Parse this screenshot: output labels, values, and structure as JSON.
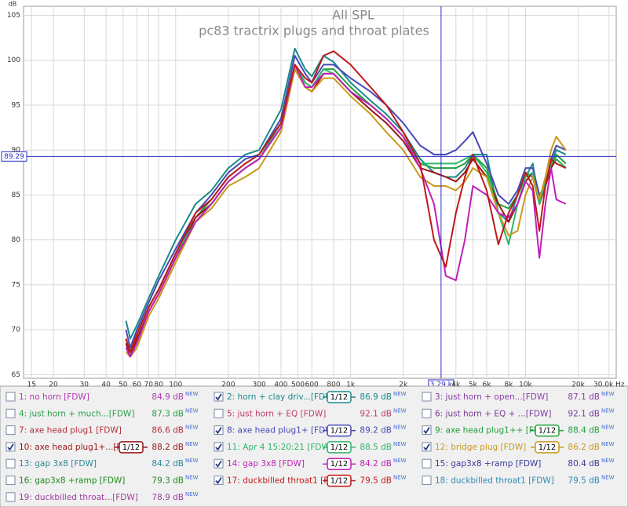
{
  "chart_data": {
    "type": "line",
    "title": "All SPL",
    "subtitle": "pc83 tractrix plugs and throat plates",
    "y_label": "dB",
    "log_x": true,
    "grid": true,
    "xlim": [
      13.5,
      33000
    ],
    "ylim": [
      64.6,
      106
    ],
    "xticks": [
      15,
      20,
      30,
      40,
      50,
      60,
      70,
      80,
      100,
      200,
      300,
      400,
      500,
      600,
      800,
      {
        "value": 1000,
        "label": "1k"
      },
      {
        "value": 2000,
        "label": "2k"
      },
      {
        "value": 4000,
        "label": "4k"
      },
      {
        "value": 5000,
        "label": "5k"
      },
      {
        "value": 6000,
        "label": "6k"
      },
      {
        "value": 8000,
        "label": "8k"
      },
      {
        "value": 10000,
        "label": "10k"
      },
      {
        "value": 20000,
        "label": "20k"
      },
      {
        "value": 30000,
        "label": "30.0k Hz"
      }
    ],
    "yticks": [
      65,
      70,
      75,
      80,
      85,
      90,
      95,
      100,
      105
    ],
    "cursor": {
      "x": {
        "value": 3290,
        "label": "3.29 k"
      },
      "y": 89.29
    },
    "new_badge": "NEW",
    "x": [
      52,
      55,
      60,
      70,
      80,
      100,
      130,
      160,
      200,
      250,
      300,
      400,
      480,
      550,
      600,
      700,
      800,
      1000,
      1300,
      1600,
      2000,
      2500,
      3000,
      3500,
      4000,
      4500,
      5000,
      6000,
      7000,
      8000,
      9000,
      10000,
      11000,
      12000,
      13000,
      14000,
      15000,
      17000
    ],
    "series": [
      {
        "name": "1: no horn [FDW]",
        "color": "#b03cb0",
        "visible": false,
        "level": {
          "value": 84.9,
          "label": "84.9 dB"
        }
      },
      {
        "name": "2: horn + clay driv...[FDW]",
        "color": "#1a8a8a",
        "visible": true,
        "smoothing": "1/12",
        "level": {
          "value": 86.9,
          "label": "86.9 dB"
        },
        "values": [
          71,
          69,
          70.5,
          73.5,
          76,
          80,
          84,
          85.5,
          88,
          89.5,
          90,
          94.5,
          101.3,
          99,
          98.2,
          100.5,
          99.8,
          97.5,
          95.5,
          94,
          92,
          89,
          87.5,
          87,
          87,
          88,
          89.5,
          89.5,
          83,
          82,
          85,
          87,
          88.5,
          84,
          86,
          88.5,
          90,
          89.5
        ]
      },
      {
        "name": "3: just horn + open...[FDW]",
        "color": "#8a3ca8",
        "visible": false,
        "level": {
          "value": 87.1,
          "label": "87.1 dB"
        }
      },
      {
        "name": "4: just horn + much...[FDW]",
        "color": "#2aa04a",
        "visible": false,
        "level": {
          "value": 87.3,
          "label": "87.3 dB"
        }
      },
      {
        "name": "5: just horn + EQ [FDW]",
        "color": "#c03c6a",
        "visible": false,
        "level": {
          "value": 92.1,
          "label": "92.1 dB"
        }
      },
      {
        "name": "6: just horn + EQ + ...[FDW]",
        "color": "#7a3c9a",
        "visible": false,
        "level": {
          "value": 92.1,
          "label": "92.1 dB"
        }
      },
      {
        "name": "7: axe head plug1 [FDW]",
        "color": "#b0303c",
        "visible": false,
        "level": {
          "value": 86.6,
          "label": "86.6 dB"
        }
      },
      {
        "name": "8: axe head plug1+ [FDW]",
        "color": "#4848b8",
        "visible": true,
        "smoothing": "1/12",
        "level": {
          "value": 89.2,
          "label": "89.2 dB"
        },
        "values": [
          70,
          68,
          70,
          73,
          75.5,
          79,
          83,
          85,
          87.5,
          89,
          89.5,
          93.5,
          100.5,
          98.5,
          97.5,
          99.5,
          99.5,
          98,
          96.5,
          95,
          93,
          90.5,
          89.5,
          89.5,
          90,
          91,
          92,
          88.5,
          85,
          84,
          85.5,
          88,
          88,
          85,
          86,
          89,
          90.5,
          90
        ]
      },
      {
        "name": "9: axe head plug1++ [FDW]",
        "color": "#22a03c",
        "visible": true,
        "smoothing": "1/12",
        "level": {
          "value": 88.4,
          "label": "88.4 dB"
        },
        "values": [
          69,
          67.5,
          69.5,
          72.5,
          74.5,
          78.5,
          82.5,
          84.5,
          87,
          88.5,
          89.5,
          93,
          99.5,
          97.5,
          97,
          99,
          99,
          97,
          95,
          93.5,
          91.5,
          88.5,
          88,
          88,
          88,
          88.5,
          89.5,
          88,
          84,
          83.5,
          85,
          87.5,
          87,
          84,
          86,
          88,
          89.5,
          88.5
        ]
      },
      {
        "name": "10: axe head plug1+...[FDW]",
        "color": "#9a1414",
        "visible": true,
        "smoothing": "1/12",
        "level": {
          "value": 88.2,
          "label": "88.2 dB"
        },
        "values": [
          68.5,
          67,
          69,
          72,
          74,
          78,
          82.5,
          84,
          86.5,
          88,
          89,
          92.5,
          99,
          97,
          96.5,
          98.5,
          98.5,
          96.5,
          94.5,
          93,
          91,
          88,
          87.5,
          87,
          86.5,
          87.5,
          89,
          87,
          84,
          82,
          84,
          86.5,
          87.5,
          84,
          86,
          88,
          89,
          88
        ]
      },
      {
        "name": "11: Apr 4 15:20:21 [FDW]",
        "color": "#2cb86a",
        "visible": true,
        "smoothing": "1/12",
        "level": {
          "value": 88.5,
          "label": "88.5 dB"
        },
        "values": [
          69,
          67.5,
          69.5,
          72.5,
          74.5,
          78.5,
          82,
          84,
          86.5,
          88,
          89,
          93,
          99.5,
          97.5,
          97,
          99,
          98.5,
          96.5,
          95,
          93.5,
          91.5,
          88.5,
          88.5,
          88.5,
          88.5,
          89,
          89.5,
          87.5,
          83,
          79.5,
          84,
          87,
          87.5,
          84,
          86.5,
          88.5,
          89,
          88
        ]
      },
      {
        "name": "12: bridge plug [FDW]",
        "color": "#c89a1c",
        "visible": true,
        "smoothing": "1/12",
        "level": {
          "value": 86.2,
          "label": "86.2 dB"
        },
        "values": [
          67.5,
          67,
          68,
          71.5,
          73.5,
          77.5,
          82,
          83.5,
          86,
          87,
          88,
          92,
          99,
          97,
          96.5,
          98,
          98,
          96,
          94,
          92,
          90,
          87,
          86,
          86,
          85.5,
          86.5,
          88,
          87,
          83,
          80.5,
          81,
          85,
          87,
          84.5,
          87,
          90,
          91.5,
          90
        ]
      },
      {
        "name": "13: gap 3x8 [FDW]",
        "color": "#2a8a9a",
        "visible": false,
        "level": {
          "value": 84.2,
          "label": "84.2 dB"
        }
      },
      {
        "name": "14: gap 3x8 [FDW]",
        "color": "#c020b8",
        "visible": true,
        "smoothing": "1/12",
        "level": {
          "value": 84.2,
          "label": "84.2 dB"
        },
        "values": [
          68,
          67,
          68.5,
          72,
          74,
          78,
          82,
          84,
          86.5,
          88,
          89,
          92.5,
          99.5,
          97,
          97,
          98.5,
          98.5,
          96.5,
          95,
          93.5,
          91.5,
          88,
          84,
          76,
          75.5,
          80,
          86,
          85,
          83,
          82.5,
          84,
          86.5,
          85.5,
          78,
          84,
          88,
          84.5,
          84
        ]
      },
      {
        "name": "15: gap3x8 +ramp [FDW]",
        "color": "#3a3a9a",
        "visible": false,
        "level": {
          "value": 80.4,
          "label": "80.4 dB"
        }
      },
      {
        "name": "16: gap3x8 +ramp [FDW]",
        "color": "#1c8a1c",
        "visible": false,
        "level": {
          "value": 79.3,
          "label": "79.3 dB"
        }
      },
      {
        "name": "17: duckbilled throat1 [FDW",
        "color": "#c01818",
        "visible": true,
        "smoothing": "1/12",
        "level": {
          "value": 79.5,
          "label": "79.5 dB"
        },
        "values": [
          69,
          67.5,
          69.5,
          72.5,
          74.5,
          78.5,
          83,
          84.5,
          87,
          88.5,
          89.5,
          93,
          99.5,
          98,
          97.5,
          100.5,
          101,
          99.5,
          97,
          95,
          92,
          88.5,
          80,
          77,
          83,
          87,
          89.5,
          85.5,
          79.5,
          83,
          85,
          87.5,
          86,
          81,
          86,
          89,
          88.5,
          88
        ]
      },
      {
        "name": "18: duckbilled throat1 [FDW]",
        "color": "#2a8ab8",
        "visible": false,
        "level": {
          "value": 79.5,
          "label": "79.5 dB"
        }
      },
      {
        "name": "19: duckbilled throat...[FDW]",
        "color": "#a03ca0",
        "visible": false,
        "level": {
          "value": 78.9,
          "label": "78.9 dB"
        }
      }
    ]
  }
}
